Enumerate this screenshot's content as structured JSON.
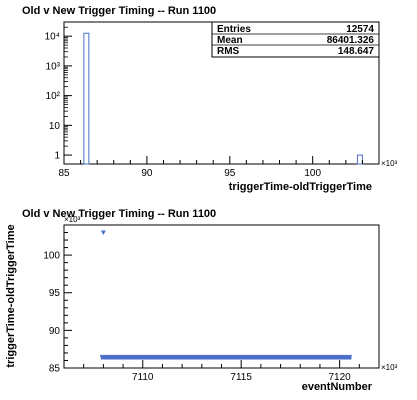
{
  "chart_data": [
    {
      "type": "bar",
      "title": "Old v New Trigger Timing -- Run 1100",
      "xlabel": "triggerTime-oldTriggerTime",
      "ylabel": "",
      "x_multiplier": "×10³",
      "xlim": [
        85,
        104
      ],
      "ylim_log": [
        0.5,
        30000
      ],
      "log_y": true,
      "grid": false,
      "x_ticks": [
        "85",
        "90",
        "95",
        "100"
      ],
      "y_ticks": [
        "1",
        "10",
        "10²",
        "10³",
        "10⁴"
      ],
      "bins": [
        {
          "x_low": 86.2,
          "x_high": 86.5,
          "count": 12573
        },
        {
          "x_low": 102.7,
          "x_high": 103.0,
          "count": 1
        }
      ],
      "stats": {
        "entries_label": "Entries",
        "entries": "12574",
        "mean_label": "Mean",
        "mean": "86401.326",
        "rms_label": "RMS",
        "rms": "148.647"
      },
      "bar_color": "#4a6fc8"
    },
    {
      "type": "scatter",
      "title": "Old v New Trigger Timing -- Run 1100",
      "xlabel": "eventNumber",
      "ylabel": "triggerTime-oldTriggerTime",
      "x_multiplier": "×10³",
      "y_multiplier": "×10³",
      "xlim": [
        7106,
        7122
      ],
      "ylim": [
        85,
        104
      ],
      "grid": false,
      "x_ticks": [
        "7110",
        "7115",
        "7120"
      ],
      "y_ticks": [
        "85",
        "90",
        "95",
        "100"
      ],
      "outlier": {
        "x": 7108.0,
        "y": 103.0
      },
      "band": {
        "x_start": 7107.9,
        "x_end": 7120.6,
        "y": 86.4
      },
      "marker_color": "#4a6fc8"
    }
  ]
}
